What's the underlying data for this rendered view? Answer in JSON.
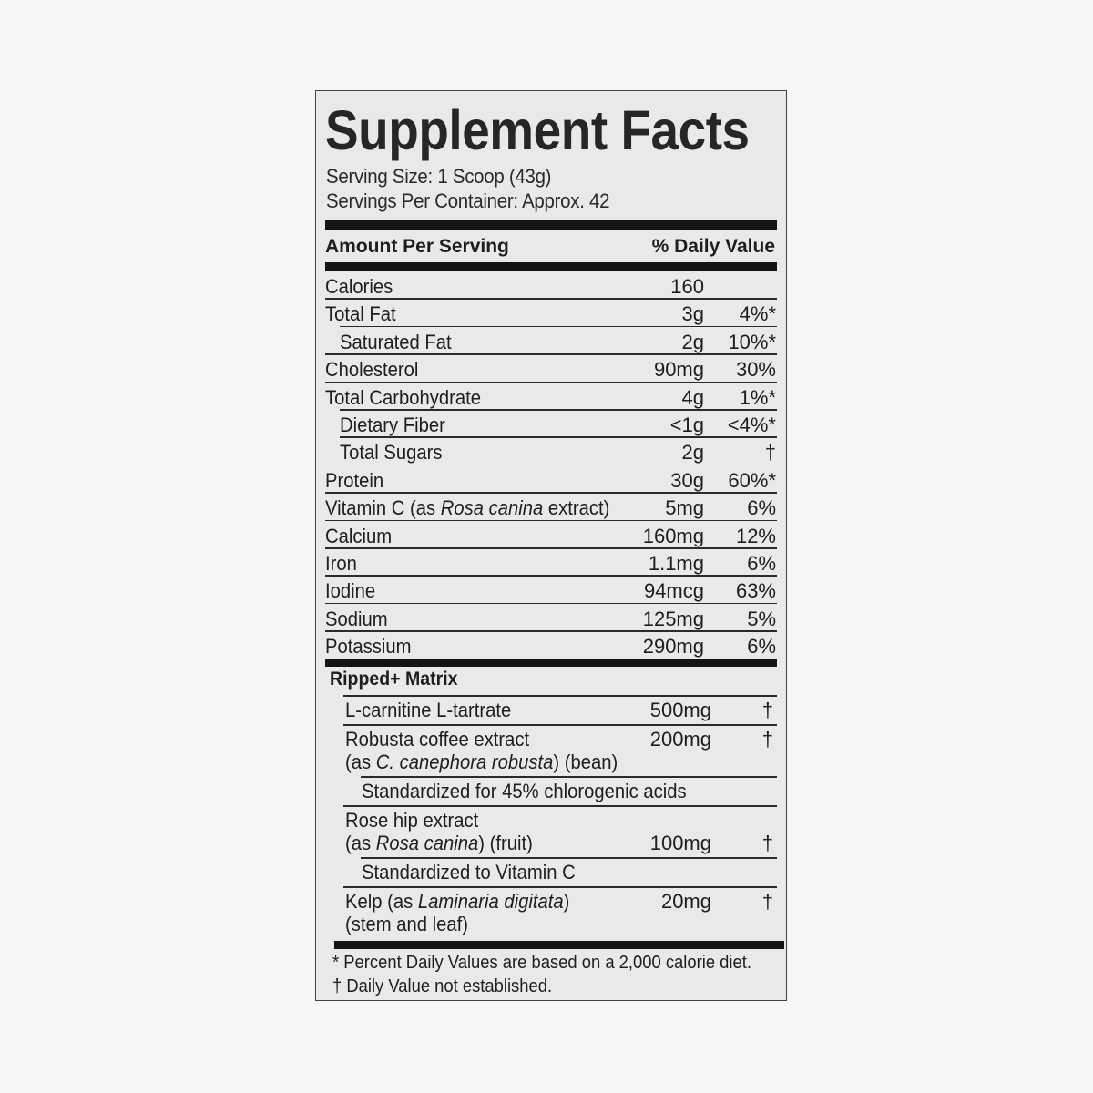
{
  "title": "Supplement Facts",
  "serving_size": "Serving Size: 1 Scoop (43g)",
  "servings_per_container": "Servings Per Container: Approx. 42",
  "header": {
    "amount": "Amount Per Serving",
    "dv": "% Daily Value"
  },
  "nutrients": [
    {
      "parts": [
        "Calories"
      ],
      "amount": "160",
      "dv": "",
      "indent": false
    },
    {
      "parts": [
        "Total Fat"
      ],
      "amount": "3g",
      "dv": "4%*",
      "indent": false
    },
    {
      "parts": [
        "Saturated Fat"
      ],
      "amount": "2g",
      "dv": "10%*",
      "indent": true
    },
    {
      "parts": [
        "Cholesterol"
      ],
      "amount": "90mg",
      "dv": "30%",
      "indent": false
    },
    {
      "parts": [
        "Total Carbohydrate"
      ],
      "amount": "4g",
      "dv": "1%*",
      "indent": false
    },
    {
      "parts": [
        "Dietary Fiber"
      ],
      "amount": "<1g",
      "dv": "<4%*",
      "indent": true
    },
    {
      "parts": [
        "Total Sugars"
      ],
      "amount": "2g",
      "dv": "†",
      "indent": true
    },
    {
      "parts": [
        "Protein"
      ],
      "amount": "30g",
      "dv": "60%*",
      "indent": false
    },
    {
      "parts": [
        "Vitamin C (as ",
        "Rosa canina",
        " extract)"
      ],
      "amount": "5mg",
      "dv": "6%",
      "indent": false
    },
    {
      "parts": [
        "Calcium"
      ],
      "amount": "160mg",
      "dv": "12%",
      "indent": false
    },
    {
      "parts": [
        "Iron"
      ],
      "amount": "1.1mg",
      "dv": "6%",
      "indent": false
    },
    {
      "parts": [
        "Iodine"
      ],
      "amount": "94mcg",
      "dv": "63%",
      "indent": false
    },
    {
      "parts": [
        "Sodium"
      ],
      "amount": "125mg",
      "dv": "5%",
      "indent": false
    },
    {
      "parts": [
        "Potassium"
      ],
      "amount": "290mg",
      "dv": "6%",
      "indent": false
    }
  ],
  "matrix": {
    "title": "Ripped+ Matrix",
    "items": [
      {
        "lines": [
          [
            "L-carnitine L-tartrate"
          ]
        ],
        "amount": "500mg",
        "dv": "†",
        "amount_line": 0,
        "sub": false
      },
      {
        "lines": [
          [
            "Robusta coffee extract"
          ],
          [
            "(as ",
            "C. canephora robusta",
            ") (bean)"
          ]
        ],
        "amount": "200mg",
        "dv": "†",
        "amount_line": 0,
        "sub": false
      },
      {
        "lines": [
          [
            "Standardized for 45% chlorogenic acids"
          ]
        ],
        "amount": "",
        "dv": "",
        "amount_line": 0,
        "sub": true
      },
      {
        "lines": [
          [
            "Rose hip extract"
          ],
          [
            "(as ",
            "Rosa canina",
            ") (fruit)"
          ]
        ],
        "amount": "100mg",
        "dv": "†",
        "amount_line": 1,
        "sub": false
      },
      {
        "lines": [
          [
            "Standardized to Vitamin C"
          ]
        ],
        "amount": "",
        "dv": "",
        "amount_line": 0,
        "sub": true
      },
      {
        "lines": [
          [
            "Kelp (as ",
            "Laminaria digitata",
            ")"
          ],
          [
            "(stem and leaf)"
          ]
        ],
        "amount": "20mg",
        "dv": "†",
        "amount_line": 0,
        "sub": false
      }
    ]
  },
  "footnotes": [
    "* Percent Daily Values are based on a 2,000 calorie diet.",
    "† Daily Value not established."
  ]
}
